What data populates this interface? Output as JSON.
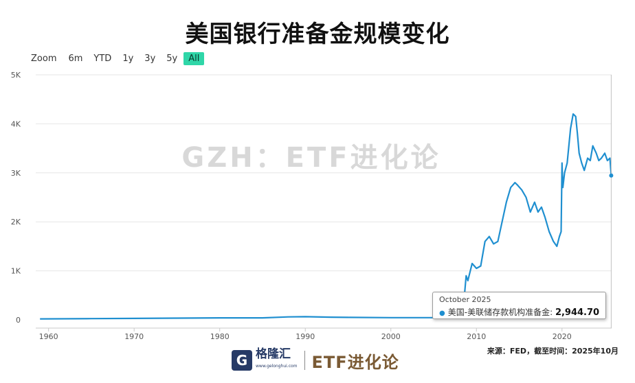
{
  "title": "美国银行准备金规模变化",
  "zoom": {
    "label": "Zoom",
    "buttons": [
      "6m",
      "YTD",
      "1y",
      "3y",
      "5y",
      "All"
    ],
    "active": "All"
  },
  "watermark": "GZH：ETF进化论",
  "tooltip": {
    "date": "October 2025",
    "series": "美国-美联储存款机构准备金:",
    "value": "2,944.70"
  },
  "source": "来源：FED，截至时间：2025年10月",
  "footer": {
    "brand": "格隆汇",
    "brand_url": "www.gelonghui.com",
    "tag": "ETF进化论"
  },
  "colors": {
    "line": "#1f8fd0",
    "active_zoom": "#2fd6a8",
    "grid": "#e6e6e6"
  },
  "chart_data": {
    "type": "line",
    "title": "美国银行准备金规模变化",
    "xlabel": "",
    "ylabel": "",
    "xlim": [
      1958.5,
      2025.8
    ],
    "ylim": [
      0,
      5000
    ],
    "x_ticks": [
      "1960",
      "1970",
      "1980",
      "1990",
      "2000",
      "2010",
      "2020"
    ],
    "y_ticks": [
      "0",
      "1K",
      "2K",
      "3K",
      "4K",
      "5K"
    ],
    "grid": true,
    "series": [
      {
        "name": "美国-美联储存款机构准备金",
        "x": [
          1959,
          1965,
          1970,
          1975,
          1980,
          1985,
          1988,
          1990,
          1993,
          1995,
          2000,
          2005,
          2008.0,
          2008.6,
          2008.8,
          2009.0,
          2009.5,
          2010.0,
          2010.5,
          2011.0,
          2011.5,
          2012.0,
          2012.5,
          2013.0,
          2013.5,
          2014.0,
          2014.5,
          2014.8,
          2015.3,
          2015.8,
          2016.3,
          2016.8,
          2017.2,
          2017.6,
          2018.0,
          2018.5,
          2019.0,
          2019.4,
          2019.7,
          2019.9,
          2020.0,
          2020.1,
          2020.3,
          2020.6,
          2021.0,
          2021.3,
          2021.6,
          2021.8,
          2022.0,
          2022.3,
          2022.6,
          2023.0,
          2023.3,
          2023.6,
          2024.0,
          2024.3,
          2024.6,
          2025.0,
          2025.3,
          2025.6,
          2025.75
        ],
        "y": [
          20,
          25,
          30,
          35,
          40,
          40,
          60,
          65,
          55,
          50,
          45,
          45,
          45,
          500,
          900,
          800,
          1150,
          1050,
          1100,
          1600,
          1700,
          1550,
          1600,
          2000,
          2400,
          2700,
          2800,
          2750,
          2650,
          2500,
          2200,
          2400,
          2200,
          2300,
          2100,
          1800,
          1600,
          1500,
          1700,
          1800,
          3200,
          2700,
          3000,
          3200,
          3900,
          4200,
          4150,
          3800,
          3400,
          3200,
          3050,
          3300,
          3250,
          3550,
          3400,
          3250,
          3300,
          3400,
          3250,
          3300,
          2944.7
        ]
      }
    ]
  }
}
